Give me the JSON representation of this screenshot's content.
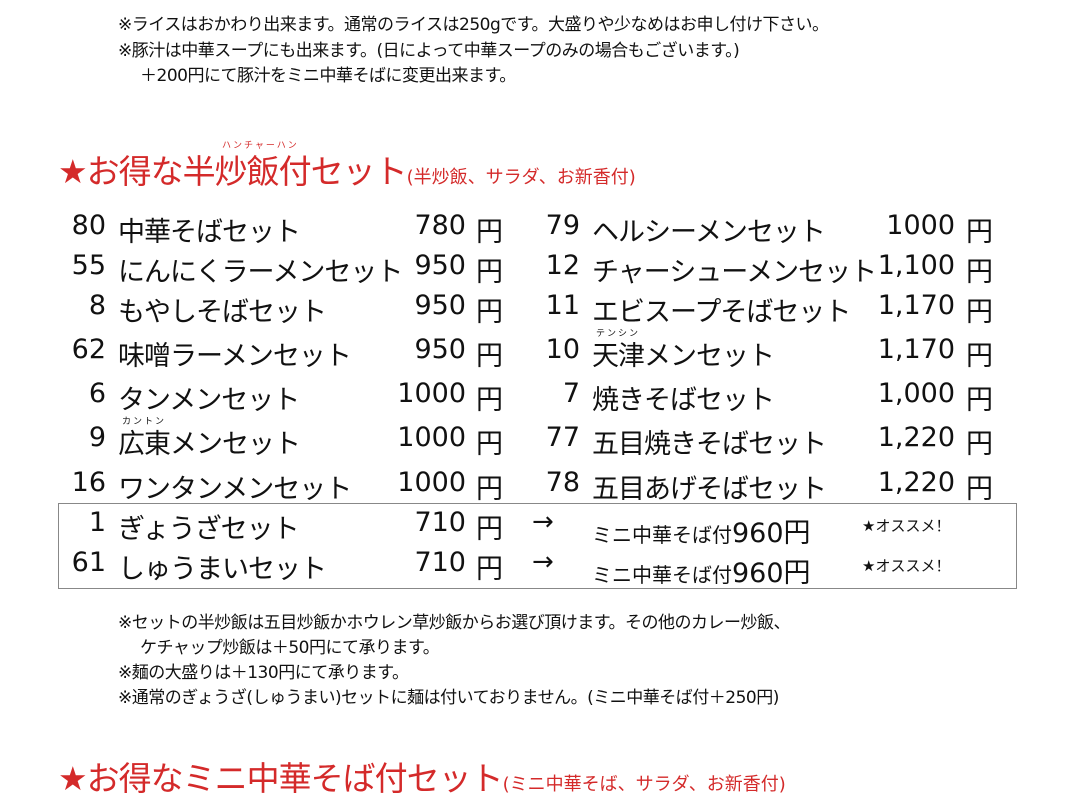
{
  "top_notes": [
    "※ライスはおかわり出来ます。通常のライスは250gです。大盛りや少なめはお申し付け下さい。",
    "※豚汁は中華スープにも出来ます。(日によって中華スープのみの場合もございます。)",
    "＋200円にて豚汁をミニ中華そばに変更出来ます。"
  ],
  "section1": {
    "title": "★お得な半炒飯付セット",
    "ruby": "ハンチャーハン",
    "subtitle": "(半炒飯、サラダ、お新香付)"
  },
  "left_items": [
    {
      "num": "80",
      "name": "中華そばセット",
      "price": "780",
      "yen": "円"
    },
    {
      "num": "55",
      "name": "にんにくラーメンセット",
      "price": "950",
      "yen": "円"
    },
    {
      "num": "8",
      "name": "もやしそばセット",
      "price": "950",
      "yen": "円"
    },
    {
      "num": "62",
      "name": "味噌ラーメンセット",
      "price": "950",
      "yen": "円"
    },
    {
      "num": "6",
      "name": "タンメンセット",
      "price": "1000",
      "yen": "円"
    },
    {
      "num": "9",
      "name": "広東メンセット",
      "price": "1000",
      "yen": "円",
      "ruby": "カントン"
    },
    {
      "num": "16",
      "name": "ワンタンメンセット",
      "price": "1000",
      "yen": "円"
    }
  ],
  "right_items": [
    {
      "num": "79",
      "name": "ヘルシーメンセット",
      "price": "1000",
      "yen": "円"
    },
    {
      "num": "12",
      "name": "チャーシューメンセット",
      "price": "1,100",
      "yen": "円"
    },
    {
      "num": "11",
      "name": "エビスープそばセット",
      "price": "1,170",
      "yen": "円"
    },
    {
      "num": "10",
      "name": "天津メンセット",
      "price": "1,170",
      "yen": "円",
      "ruby": "テンシン"
    },
    {
      "num": "7",
      "name": "焼きそばセット",
      "price": "1,000",
      "yen": "円"
    },
    {
      "num": "77",
      "name": "五目焼きそばセット",
      "price": "1,220",
      "yen": "円"
    },
    {
      "num": "78",
      "name": "五目あげそばセット",
      "price": "1,220",
      "yen": "円"
    }
  ],
  "boxed_items": [
    {
      "num": "1",
      "name": "ぎょうざセット",
      "price": "710",
      "yen": "円",
      "arrow": "→",
      "upgrade_label": "ミニ中華そば付",
      "upgrade_price": "960円",
      "recommend": "★オススメ！"
    },
    {
      "num": "61",
      "name": "しゅうまいセット",
      "price": "710",
      "yen": "円",
      "arrow": "→",
      "upgrade_label": "ミニ中華そば付",
      "upgrade_price": "960円",
      "recommend": "★オススメ！"
    }
  ],
  "bottom_notes": [
    "※セットの半炒飯は五目炒飯かホウレン草炒飯からお選び頂けます。その他のカレー炒飯、",
    "ケチャップ炒飯は＋50円にて承ります。",
    "※麺の大盛りは＋130円にて承ります。",
    "※通常のぎょうざ(しゅうまい)セットに麺は付いておりません。(ミニ中華そば付＋250円)"
  ],
  "section2": {
    "title": "★お得なミニ中華そば付セット",
    "subtitle": "(ミニ中華そば、サラダ、お新香付)"
  },
  "colors": {
    "accent": "#d42a2a"
  }
}
